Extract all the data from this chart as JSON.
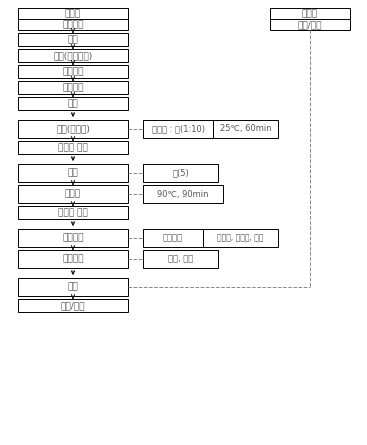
{
  "main_flow": [
    "원재료",
    "원료선별",
    "입고",
    "보관(저온건조)",
    "이물제거",
    "금속선별",
    "절단",
    "침지(염제거)",
    "상등액 제거",
    "가수",
    "열처리",
    "상등액 분획",
    "품질검검",
    "관능검사",
    "포장",
    "보관/출고"
  ],
  "side_boxes": {
    "침지(염제거)": [
      [
        "미역귀 : 물(1:10)",
        "25℃, 60min"
      ]
    ],
    "가수": [
      [
        "물(5)"
      ]
    ],
    "열처리": [
      [
        "90℃, 90min"
      ]
    ],
    "품질검검": [
      [
        "공인분석",
        "중금속, 미생물, 식염"
      ]
    ],
    "관능검사": [
      [
        "이미, 이취"
      ]
    ]
  },
  "top_right_box": [
    "부자재",
    "입고/보관"
  ],
  "bg_color": "#ffffff",
  "box_edge_color": "#000000",
  "text_color": "#555555",
  "font_size": 6.5,
  "arrow_color": "#000000"
}
